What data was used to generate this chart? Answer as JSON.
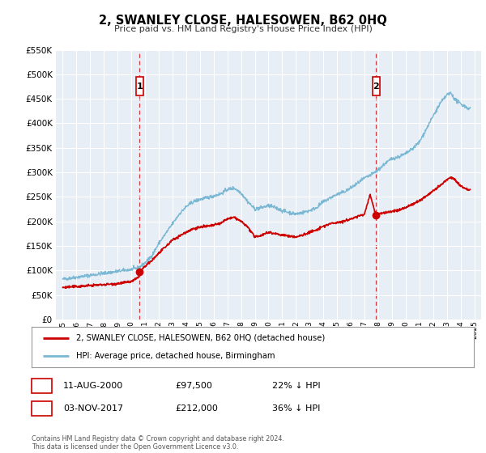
{
  "title": "2, SWANLEY CLOSE, HALESOWEN, B62 0HQ",
  "subtitle": "Price paid vs. HM Land Registry's House Price Index (HPI)",
  "legend_label_red": "2, SWANLEY CLOSE, HALESOWEN, B62 0HQ (detached house)",
  "legend_label_blue": "HPI: Average price, detached house, Birmingham",
  "annotation1_date": "11-AUG-2000",
  "annotation1_price": "£97,500",
  "annotation1_hpi": "22% ↓ HPI",
  "annotation2_date": "03-NOV-2017",
  "annotation2_price": "£212,000",
  "annotation2_hpi": "36% ↓ HPI",
  "footer1": "Contains HM Land Registry data © Crown copyright and database right 2024.",
  "footer2": "This data is licensed under the Open Government Licence v3.0.",
  "ylim": [
    0,
    550000
  ],
  "yticks": [
    0,
    50000,
    100000,
    150000,
    200000,
    250000,
    300000,
    350000,
    400000,
    450000,
    500000,
    550000
  ],
  "xlim_start": 1994.5,
  "xlim_end": 2025.5,
  "plot_bg_color": "#e8eef5",
  "red_color": "#cc0000",
  "blue_color": "#7ab8d4",
  "grid_color": "#ffffff",
  "sale1_x": 2000.61,
  "sale1_y": 97500,
  "sale2_x": 2017.84,
  "sale2_y": 212000,
  "vline1_x": 2000.61,
  "vline2_x": 2017.84
}
